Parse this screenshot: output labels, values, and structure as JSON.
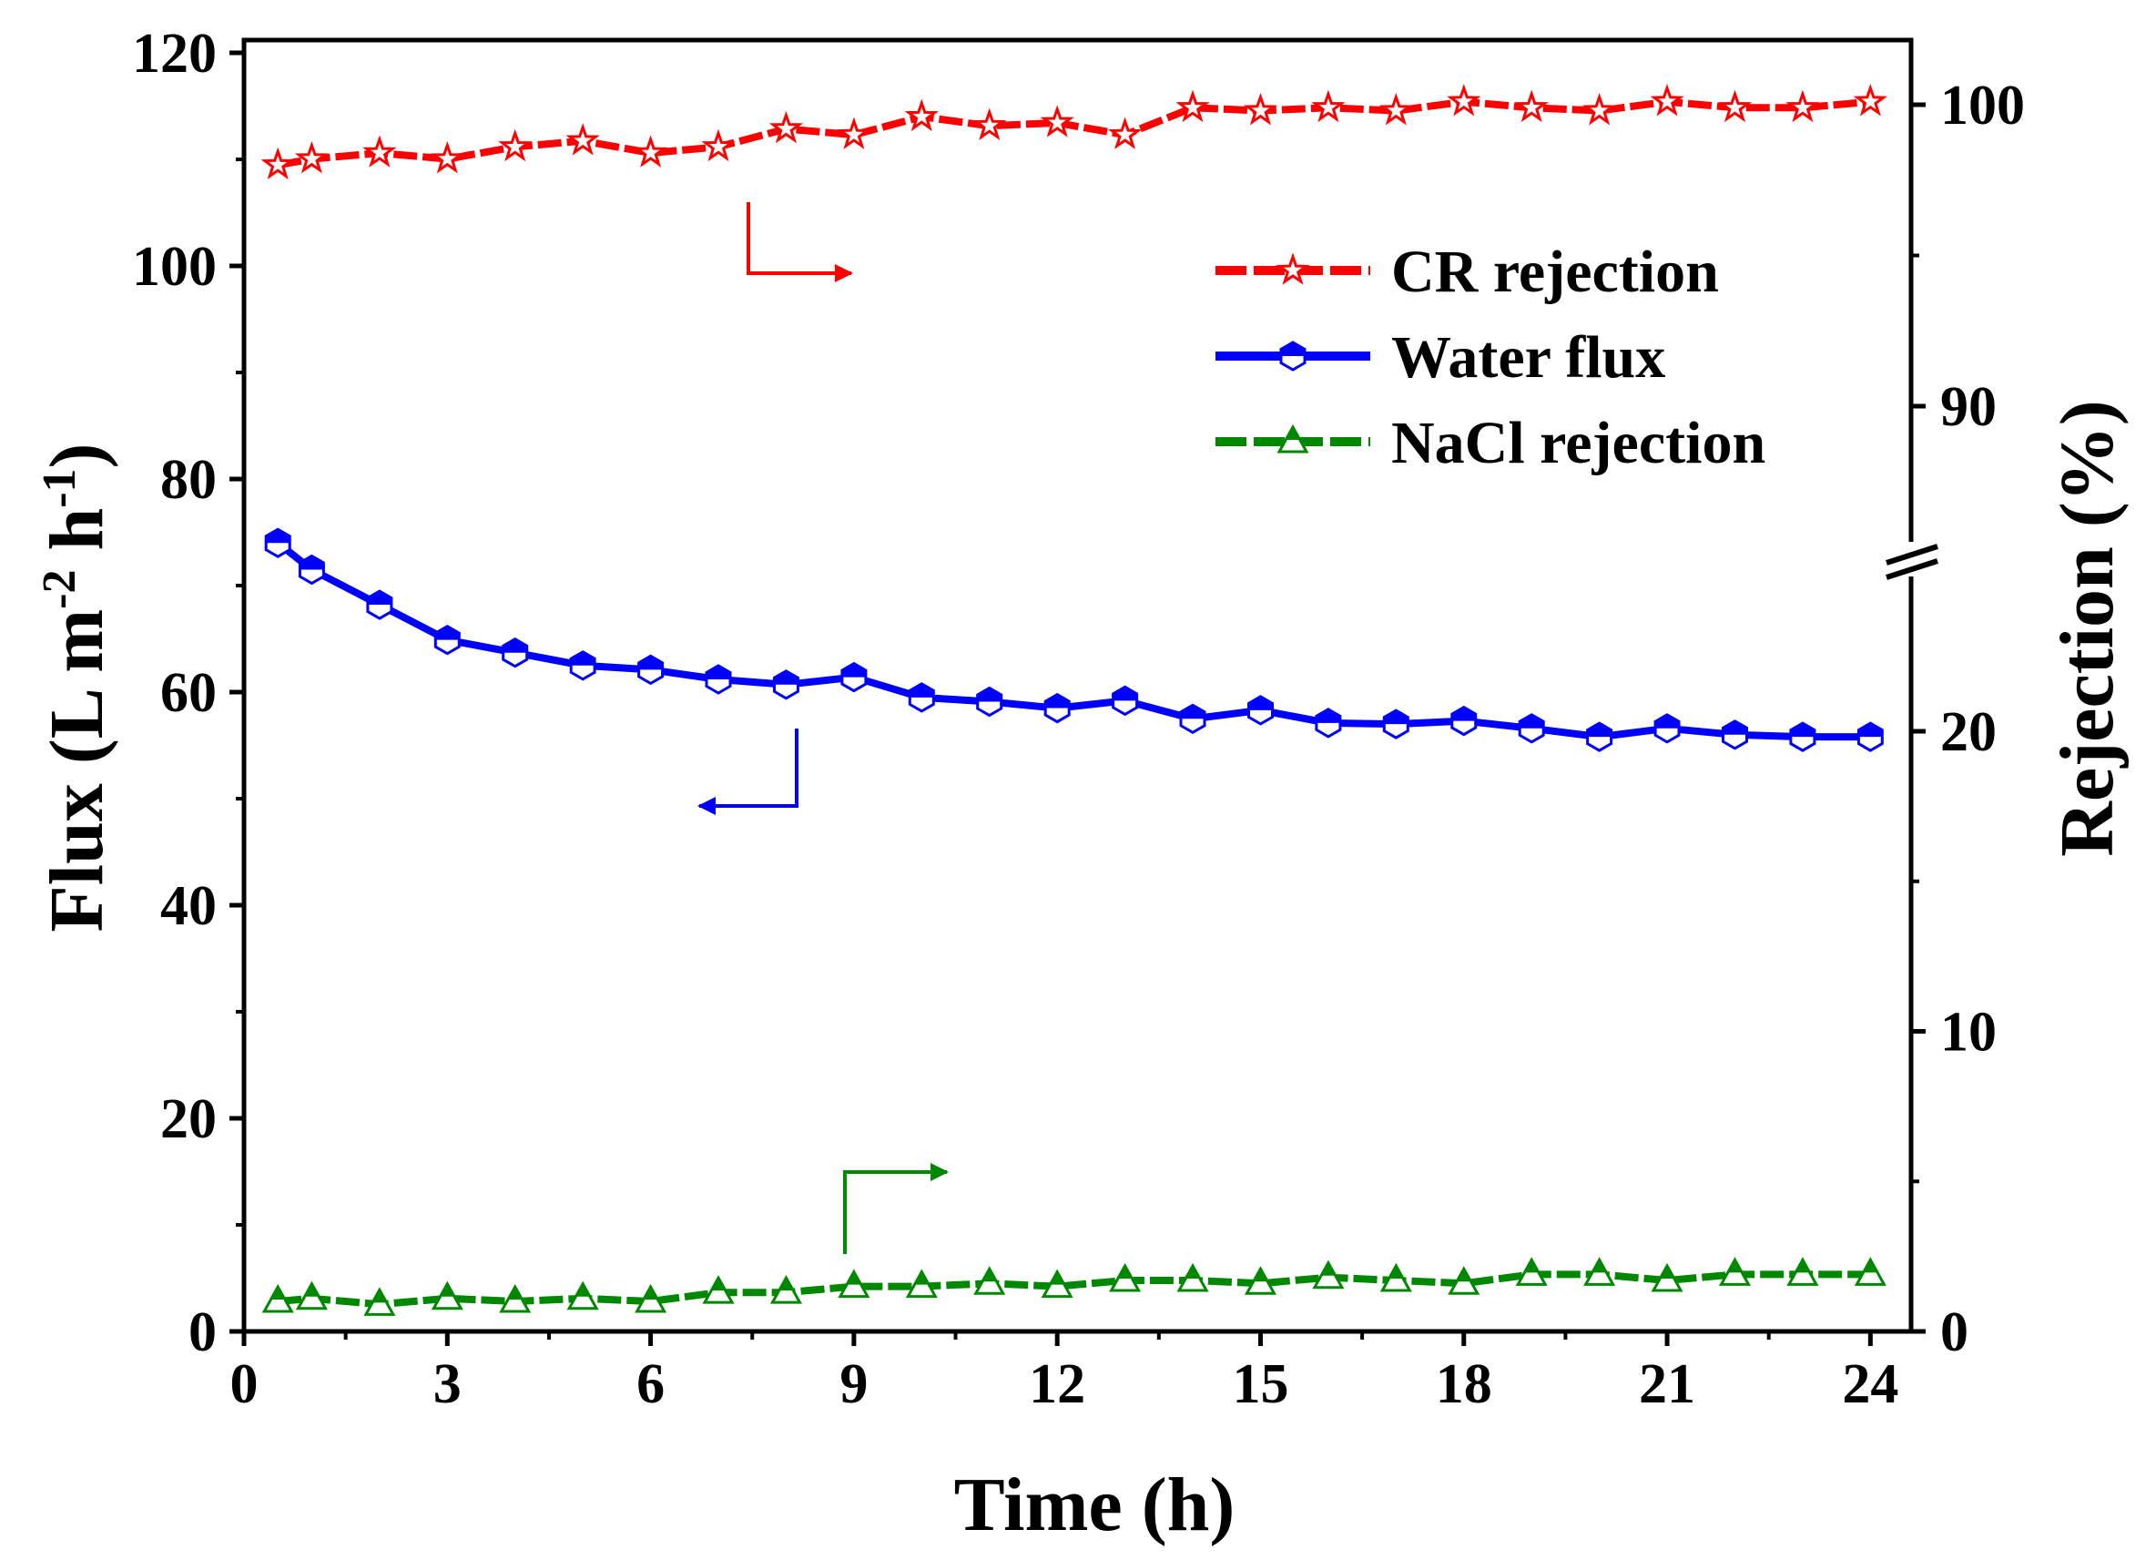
{
  "chart_data": {
    "type": "line",
    "title": "",
    "xlabel": "Time (h)",
    "ylabel_left": {
      "main": "Flux (L m",
      "sup1": "-2",
      "mid": " h",
      "sup2": "-1",
      "end": ")"
    },
    "ylabel_right": "Rejection (%)",
    "x_range": [
      0,
      24.6
    ],
    "x_ticks": [
      0,
      3,
      6,
      9,
      12,
      15,
      18,
      21,
      24
    ],
    "x_tick_labels": [
      "0",
      "3",
      "6",
      "9",
      "12",
      "15",
      "18",
      "21",
      "24"
    ],
    "y_left_range": [
      0,
      120
    ],
    "y_left_ticks": [
      0,
      20,
      40,
      60,
      80,
      100,
      120
    ],
    "y_left_tick_labels": [
      "0",
      "20",
      "40",
      "60",
      "80",
      "100",
      "120"
    ],
    "y_right_ticks": [
      0,
      10,
      20,
      90,
      100
    ],
    "y_right_tick_labels": [
      "0",
      "10",
      "20",
      "90",
      "100"
    ],
    "y_right_axis_break": [
      25,
      85
    ],
    "x": [
      0.5,
      1,
      2,
      3,
      4,
      5,
      6,
      7,
      8,
      9,
      10,
      11,
      12,
      13,
      14,
      15,
      16,
      17,
      18,
      19,
      20,
      21,
      22,
      23,
      24
    ],
    "series": [
      {
        "name": "CR rejection",
        "axis": "right",
        "color": "#ff0000",
        "marker": "star",
        "values": [
          98.0,
          98.2,
          98.4,
          98.2,
          98.6,
          98.8,
          98.4,
          98.6,
          99.2,
          99.0,
          99.6,
          99.3,
          99.4,
          99.0,
          99.9,
          99.8,
          99.9,
          99.8,
          100.1,
          99.9,
          99.8,
          100.1,
          99.9,
          99.9,
          100.1
        ]
      },
      {
        "name": "Water flux",
        "axis": "left",
        "color": "#0000ff",
        "marker": "hexagon",
        "values": [
          74.0,
          71.5,
          68.2,
          64.9,
          63.7,
          62.5,
          62.1,
          61.2,
          60.7,
          61.4,
          59.5,
          59.1,
          58.5,
          59.2,
          57.5,
          58.3,
          57.1,
          57.0,
          57.3,
          56.6,
          55.8,
          56.6,
          56.0,
          55.8,
          55.8
        ]
      },
      {
        "name": "NaCl rejection",
        "axis": "right",
        "color": "#008800",
        "marker": "triangle",
        "values": [
          1.0,
          1.1,
          0.9,
          1.1,
          1.0,
          1.1,
          1.0,
          1.3,
          1.3,
          1.5,
          1.5,
          1.6,
          1.5,
          1.7,
          1.7,
          1.6,
          1.8,
          1.7,
          1.6,
          1.9,
          1.9,
          1.7,
          1.9,
          1.9,
          1.9
        ]
      }
    ],
    "legend": {
      "position": "top-right",
      "items": [
        "CR rejection",
        "Water flux",
        "NaCl rejection"
      ]
    },
    "annotations": [
      {
        "kind": "arrow",
        "points_to": "right",
        "series": "CR rejection"
      },
      {
        "kind": "arrow",
        "points_to": "left",
        "series": "Water flux"
      },
      {
        "kind": "arrow",
        "points_to": "right",
        "series": "NaCl rejection"
      }
    ]
  }
}
